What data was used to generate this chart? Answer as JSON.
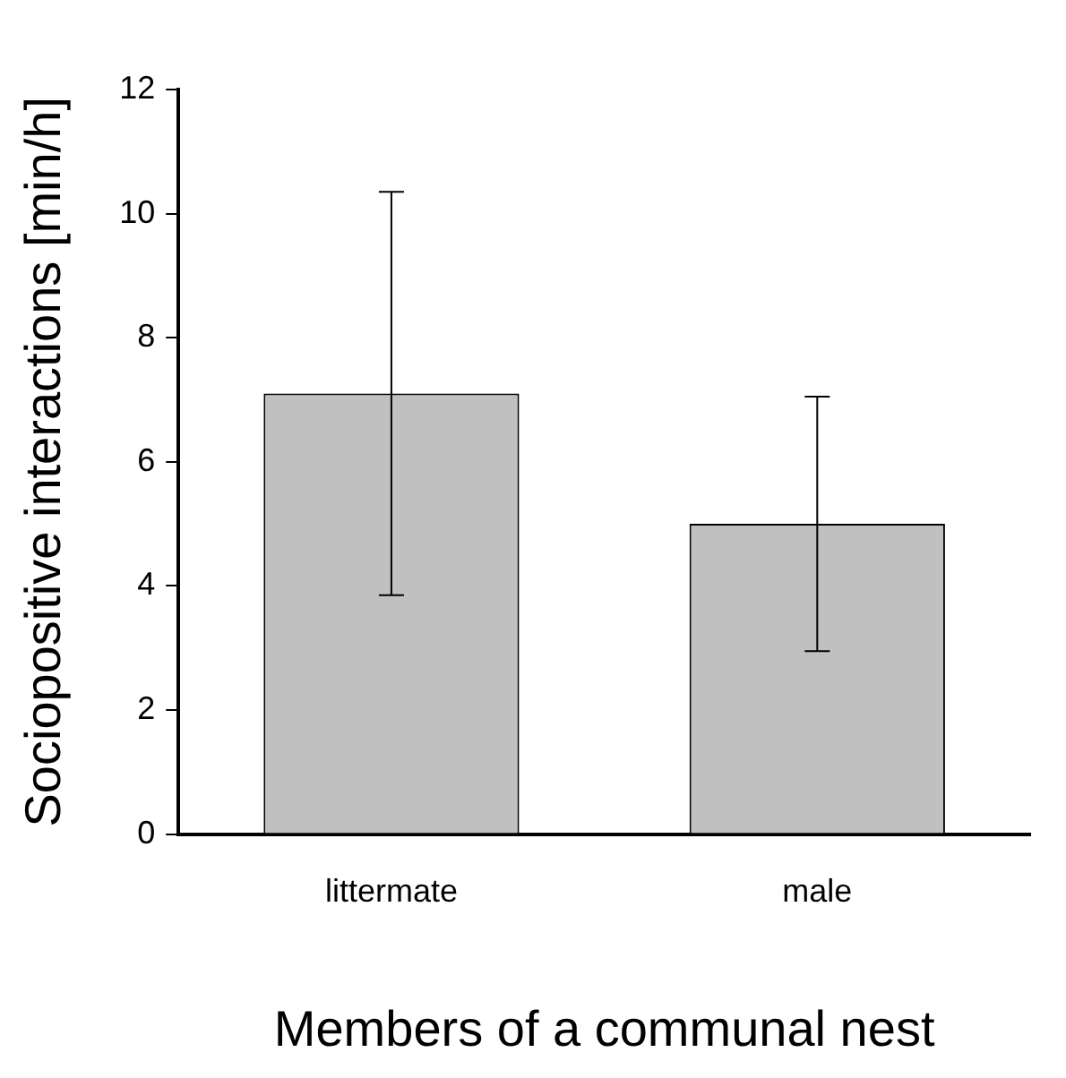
{
  "chart_data": {
    "type": "bar",
    "categories": [
      "littermate",
      "male"
    ],
    "values": [
      7.1,
      5.0
    ],
    "errors": [
      3.25,
      2.05
    ],
    "color": "#c0c0c0",
    "ylim": [
      0,
      12
    ],
    "yticks": [
      0,
      2,
      4,
      6,
      8,
      10,
      12
    ],
    "xlabel": "Members of a communal nest",
    "ylabel": "Sociopositive interactions [min/h]",
    "grid": false,
    "legend": false
  }
}
